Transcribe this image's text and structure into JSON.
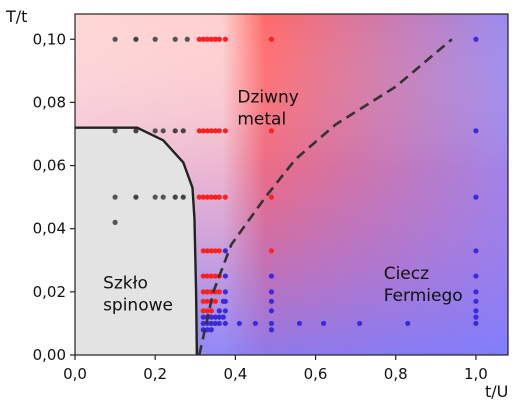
{
  "chart_data": {
    "type": "scatter",
    "xlabel": "t/U",
    "ylabel": "T/t",
    "xlim": [
      0.0,
      1.08
    ],
    "ylim": [
      0.0,
      0.108
    ],
    "x_ticks": [
      "0,0",
      "0,2",
      "0,4",
      "0,6",
      "0,8",
      "1,0"
    ],
    "x_tick_values": [
      0.0,
      0.2,
      0.4,
      0.6,
      0.8,
      1.0
    ],
    "y_ticks": [
      "0,00",
      "0,02",
      "0,04",
      "0,06",
      "0,08",
      "0,10"
    ],
    "y_tick_values": [
      0.0,
      0.02,
      0.04,
      0.06,
      0.08,
      0.1
    ],
    "grid": false,
    "regions": [
      {
        "lines": [
          "Szkło",
          "spinowe"
        ],
        "at": [
          0.07,
          0.021
        ],
        "color": "#e3e3e3"
      },
      {
        "lines": [
          "Dziwny",
          "metal"
        ],
        "at": [
          0.405,
          0.08
        ],
        "color": "#ff4040"
      },
      {
        "lines": [
          "Ciecz",
          "Fermiego"
        ],
        "at": [
          0.77,
          0.024
        ],
        "color": "#8080ff"
      }
    ],
    "spin_glass_boundary": [
      [
        0.0,
        0.072
      ],
      [
        0.155,
        0.072
      ],
      [
        0.22,
        0.068
      ],
      [
        0.27,
        0.061
      ],
      [
        0.293,
        0.053
      ],
      [
        0.298,
        0.043
      ],
      [
        0.302,
        0.02
      ],
      [
        0.304,
        0.0
      ]
    ],
    "dashed_crossover": [
      [
        0.31,
        0.0
      ],
      [
        0.345,
        0.02
      ],
      [
        0.39,
        0.035
      ],
      [
        0.475,
        0.05
      ],
      [
        0.55,
        0.062
      ],
      [
        0.65,
        0.073
      ],
      [
        0.8,
        0.085
      ],
      [
        0.94,
        0.1
      ]
    ],
    "series": [
      {
        "values": [
          [
            0.1,
            0.1
          ],
          [
            0.1,
            0.071
          ],
          [
            0.1,
            0.05
          ],
          [
            0.1,
            0.042
          ],
          [
            0.2,
            0.05
          ],
          [
            0.22,
            0.05
          ],
          [
            0.2,
            0.1
          ],
          [
            0.25,
            0.1
          ],
          [
            0.28,
            0.1
          ],
          [
            0.2,
            0.071
          ],
          [
            0.22,
            0.071
          ]
        ],
        "color": "#555555"
      },
      {
        "values": [
          [
            0.152,
            0.1
          ],
          [
            0.152,
            0.071
          ],
          [
            0.152,
            0.05
          ],
          [
            0.25,
            0.05
          ],
          [
            0.27,
            0.05
          ],
          [
            0.25,
            0.071
          ],
          [
            0.27,
            0.071
          ]
        ],
        "color": "#444444"
      },
      {
        "values": [
          [
            0.31,
            0.1
          ],
          [
            0.32,
            0.1
          ],
          [
            0.33,
            0.1
          ],
          [
            0.34,
            0.1
          ],
          [
            0.35,
            0.1
          ],
          [
            0.36,
            0.1
          ],
          [
            0.375,
            0.1
          ],
          [
            0.31,
            0.071
          ],
          [
            0.32,
            0.071
          ],
          [
            0.33,
            0.071
          ],
          [
            0.34,
            0.071
          ],
          [
            0.35,
            0.071
          ],
          [
            0.36,
            0.071
          ],
          [
            0.375,
            0.071
          ],
          [
            0.31,
            0.05
          ],
          [
            0.32,
            0.05
          ],
          [
            0.33,
            0.05
          ],
          [
            0.34,
            0.05
          ],
          [
            0.35,
            0.05
          ],
          [
            0.36,
            0.05
          ],
          [
            0.375,
            0.05
          ],
          [
            0.32,
            0.033
          ],
          [
            0.33,
            0.033
          ],
          [
            0.34,
            0.033
          ],
          [
            0.35,
            0.033
          ],
          [
            0.36,
            0.033
          ],
          [
            0.32,
            0.025
          ],
          [
            0.33,
            0.025
          ],
          [
            0.34,
            0.025
          ],
          [
            0.35,
            0.025
          ],
          [
            0.36,
            0.025
          ],
          [
            0.32,
            0.02
          ],
          [
            0.33,
            0.02
          ],
          [
            0.34,
            0.02
          ],
          [
            0.35,
            0.02
          ],
          [
            0.36,
            0.02
          ],
          [
            0.32,
            0.017
          ],
          [
            0.33,
            0.017
          ],
          [
            0.34,
            0.017
          ],
          [
            0.35,
            0.017
          ],
          [
            0.32,
            0.014
          ],
          [
            0.33,
            0.014
          ],
          [
            0.34,
            0.014
          ],
          [
            0.49,
            0.1
          ],
          [
            0.49,
            0.071
          ],
          [
            0.49,
            0.05
          ],
          [
            0.49,
            0.033
          ]
        ],
        "color": "#ff2020"
      },
      {
        "values": [
          [
            0.32,
            0.012
          ],
          [
            0.33,
            0.012
          ],
          [
            0.34,
            0.012
          ],
          [
            0.35,
            0.012
          ],
          [
            0.36,
            0.012
          ],
          [
            0.37,
            0.012
          ],
          [
            0.32,
            0.01
          ],
          [
            0.33,
            0.01
          ],
          [
            0.34,
            0.01
          ],
          [
            0.35,
            0.01
          ],
          [
            0.36,
            0.01
          ],
          [
            0.32,
            0.008
          ],
          [
            0.33,
            0.008
          ],
          [
            0.34,
            0.008
          ],
          [
            0.375,
            0.033
          ],
          [
            0.375,
            0.025
          ],
          [
            0.375,
            0.02
          ],
          [
            0.375,
            0.017
          ],
          [
            0.375,
            0.014
          ],
          [
            0.375,
            0.01
          ],
          [
            0.36,
            0.014
          ],
          [
            0.37,
            0.017
          ],
          [
            0.49,
            0.025
          ],
          [
            0.49,
            0.02
          ],
          [
            0.49,
            0.017
          ],
          [
            0.49,
            0.014
          ],
          [
            0.49,
            0.01
          ],
          [
            0.41,
            0.01
          ],
          [
            0.45,
            0.01
          ],
          [
            0.49,
            0.008
          ],
          [
            0.56,
            0.01
          ],
          [
            0.62,
            0.01
          ],
          [
            0.71,
            0.01
          ],
          [
            0.83,
            0.01
          ],
          [
            1.0,
            0.1
          ],
          [
            1.0,
            0.071
          ],
          [
            1.0,
            0.05
          ],
          [
            1.0,
            0.033
          ],
          [
            1.0,
            0.025
          ],
          [
            1.0,
            0.02
          ],
          [
            1.0,
            0.017
          ],
          [
            1.0,
            0.014
          ],
          [
            1.0,
            0.012
          ],
          [
            1.0,
            0.01
          ]
        ],
        "color": "#3a2bd8"
      }
    ]
  }
}
